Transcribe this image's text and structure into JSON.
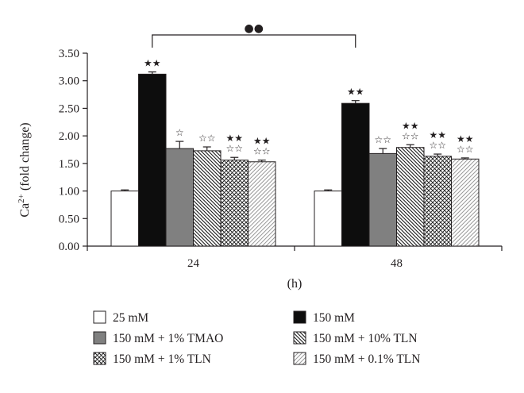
{
  "chart_data": {
    "type": "bar",
    "title": "",
    "xlabel": "(h)",
    "ylabel": "Ca2+ (fold change)",
    "ylabel_parts": {
      "base": "Ca",
      "sup": "2+",
      "rest": " (fold change)"
    },
    "ylim": [
      0,
      3.5
    ],
    "yticks": [
      "0.00",
      "0.50",
      "1.00",
      "1.50",
      "2.00",
      "2.50",
      "3.00",
      "3.50"
    ],
    "categories": [
      "24",
      "48"
    ],
    "grid": false,
    "legend_position": "bottom",
    "series": [
      {
        "name": "25 mM",
        "values": [
          1.0,
          1.0
        ],
        "errors": [
          0.02,
          0.02
        ],
        "fill": "#ffffff",
        "pattern": "none",
        "annotations": [
          [],
          []
        ]
      },
      {
        "name": "150 mM",
        "values": [
          3.12,
          2.59
        ],
        "errors": [
          0.04,
          0.05
        ],
        "fill": "#0d0d0d",
        "pattern": "none",
        "annotations": [
          [
            "★★"
          ],
          [
            "★★"
          ]
        ]
      },
      {
        "name": "150 mM + 1% TMAO",
        "values": [
          1.77,
          1.68
        ],
        "errors": [
          0.13,
          0.09
        ],
        "fill": "#808080",
        "pattern": "none",
        "annotations": [
          [
            "☆"
          ],
          [
            "☆☆"
          ]
        ]
      },
      {
        "name": "150 mM + 10% TLN",
        "values": [
          1.73,
          1.79
        ],
        "errors": [
          0.07,
          0.05
        ],
        "fill": "#ffffff",
        "pattern": "diag-back-dense",
        "annotations": [
          [
            "☆☆"
          ],
          [
            "★★",
            "☆☆"
          ]
        ]
      },
      {
        "name": "150 mM + 1% TLN",
        "values": [
          1.56,
          1.63
        ],
        "errors": [
          0.05,
          0.04
        ],
        "fill": "#ffffff",
        "pattern": "crosshatch",
        "annotations": [
          [
            "★★",
            "☆☆"
          ],
          [
            "★★",
            "☆☆"
          ]
        ]
      },
      {
        "name": "150 mM + 0.1% TLN",
        "values": [
          1.53,
          1.58
        ],
        "errors": [
          0.03,
          0.02
        ],
        "fill": "#ffffff",
        "pattern": "diag-fwd-light",
        "annotations": [
          [
            "★★",
            "☆☆"
          ],
          [
            "★★",
            "☆☆"
          ]
        ]
      }
    ],
    "comparison_bracket": {
      "from_category": "24",
      "to_category": "48",
      "series": "150 mM",
      "symbol": "●●"
    },
    "colors": {
      "axis": "#231f20",
      "dark": "#0d0d0d",
      "gray": "#808080",
      "hatch_light": "#9a9a9a"
    }
  }
}
